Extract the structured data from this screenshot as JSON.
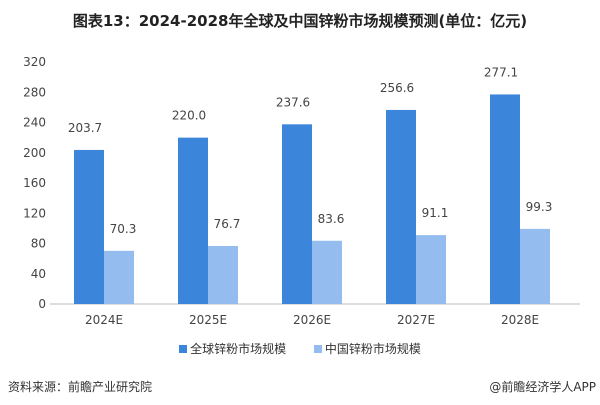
{
  "chart_data": {
    "type": "bar",
    "title": "图表13：2024-2028年全球及中国锌粉市场规模预测(单位：亿元)",
    "categories": [
      "2024E",
      "2025E",
      "2026E",
      "2027E",
      "2028E"
    ],
    "series": [
      {
        "name": "全球锌粉市场规模",
        "values": [
          203.7,
          220.0,
          237.6,
          256.6,
          277.1
        ],
        "color": "#3B86DB"
      },
      {
        "name": "中国锌粉市场规模",
        "values": [
          70.3,
          76.7,
          83.6,
          91.1,
          99.3
        ],
        "color": "#94BCEE"
      }
    ],
    "ylim": [
      0,
      320
    ],
    "yticks": [
      0,
      40,
      80,
      120,
      160,
      200,
      240,
      280,
      320
    ],
    "grid": false,
    "legend": "bottom"
  },
  "footer": {
    "source": "资料来源：前瞻产业研究院",
    "credit": "@前瞻经济学人APP"
  }
}
